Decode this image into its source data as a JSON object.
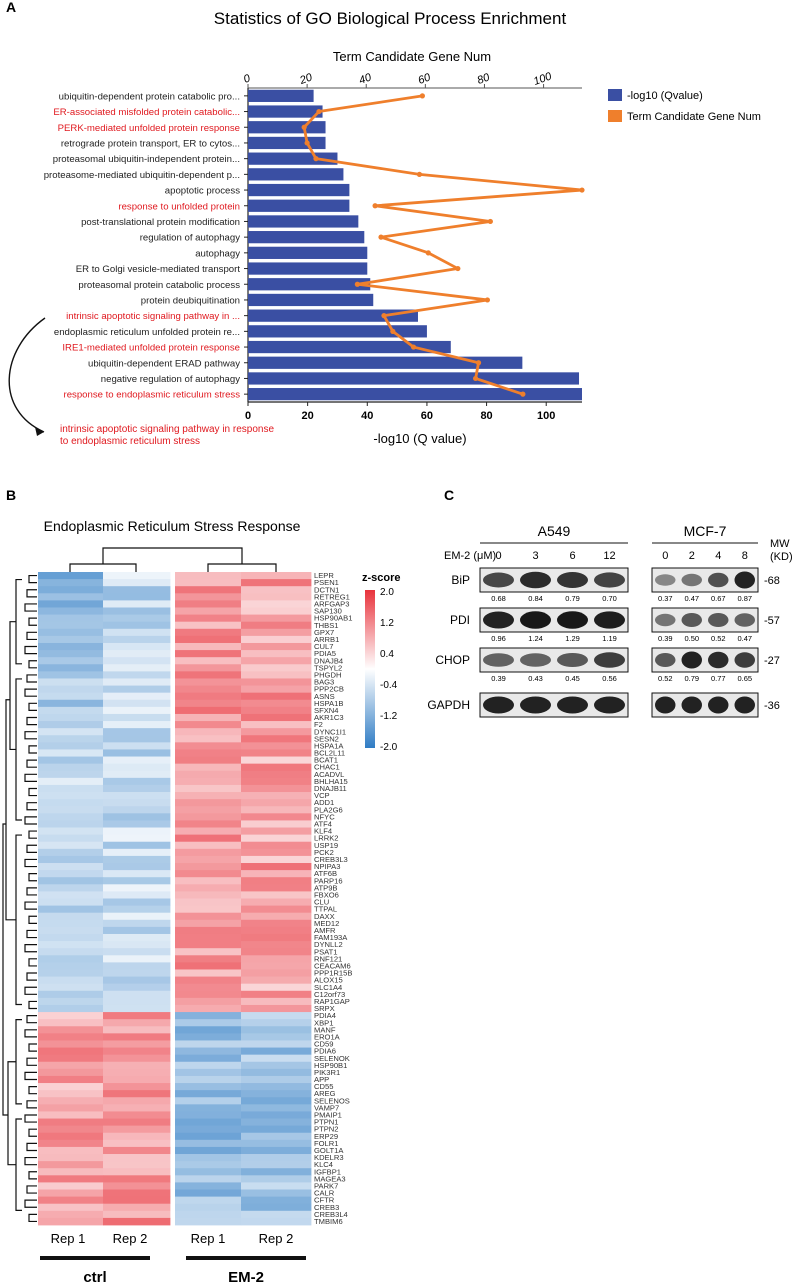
{
  "panel_labels": {
    "a": "A",
    "b": "B",
    "c": "C"
  },
  "colors": {
    "bar": "#3a4fa3",
    "line": "#ef7f2c",
    "highlight": "#e0191f",
    "text": "#222222",
    "heat_high": "#e8333c",
    "heat_mid": "#ffffff",
    "heat_low": "#2f7cc4"
  },
  "chart_data": [
    {
      "type": "bar",
      "title": "Statistics of GO Biological Process Enrichment",
      "top_axis_title": "Term Candidate Gene Num",
      "xlabel": "-log10 (Q value)",
      "xlim": [
        0,
        112
      ],
      "top_xlim": [
        0,
        113
      ],
      "ticks": [
        0,
        20,
        40,
        60,
        80,
        100
      ],
      "legend": {
        "bar": "-log10 (Qvalue)",
        "line": "Term Candidate Gene Num"
      },
      "categories": [
        "ubiquitin-dependent protein catabolic pro...",
        "ER-associated misfolded protein catabolic...",
        "PERK-mediated unfolded protein response",
        "retrograde protein transport, ER to cytos...",
        "proteasomal ubiquitin-independent protein...",
        "proteasome-mediated ubiquitin-dependent p...",
        "apoptotic process",
        "response to unfolded protein",
        "post-translational protein modification",
        "regulation of autophagy",
        "autophagy",
        "ER to Golgi vesicle-mediated transport",
        "proteasomal protein catabolic process",
        "protein deubiquitination",
        "intrinsic apoptotic signaling pathway in ...",
        "endoplasmic reticulum unfolded protein re...",
        "IRE1-mediated unfolded protein response",
        "ubiquitin-dependent ERAD pathway",
        "negative regulation of autophagy",
        "response to endoplasmic reticulum stress"
      ],
      "highlight": [
        false,
        true,
        true,
        false,
        false,
        false,
        false,
        true,
        false,
        false,
        false,
        false,
        false,
        false,
        true,
        false,
        true,
        false,
        false,
        true
      ],
      "values": [
        22,
        25,
        26,
        26,
        30,
        32,
        34,
        34,
        37,
        39,
        40,
        40,
        41,
        42,
        57,
        60,
        68,
        92,
        111,
        112
      ],
      "gene_num": [
        59,
        24,
        19,
        20,
        23,
        58,
        113,
        43,
        82,
        45,
        61,
        71,
        37,
        81,
        46,
        49,
        56,
        78,
        77,
        93
      ],
      "annotation": "intrinsic apoptotic signaling pathway in response to endoplasmic reticulum stress"
    },
    {
      "type": "heatmap",
      "title": "Endoplasmic Reticulum Stress Response",
      "legend_title": "z-score",
      "scale_ticks": [
        "2.0",
        "1.2",
        "0.4",
        "-0.4",
        "-1.2",
        "-2.0"
      ],
      "columns": [
        "Rep 1",
        "Rep 2",
        "Rep 1",
        "Rep 2"
      ],
      "groups": [
        "ctrl",
        "EM-2"
      ],
      "genes": [
        "LEPR",
        "PSEN1",
        "DCTN1",
        "RETREG1",
        "ARFGAP3",
        "SAP130",
        "HSP90AB1",
        "THBS1",
        "GPX7",
        "ARRB1",
        "CUL7",
        "PDIA5",
        "DNAJB4",
        "TSPYL2",
        "PHGDH",
        "BAG3",
        "PPP2CB",
        "ASNS",
        "HSPA1B",
        "SFXN4",
        "AKR1C3",
        "F2",
        "DYNC1I1",
        "SESN2",
        "HSPA1A",
        "BCL2L11",
        "BCAT1",
        "CHAC1",
        "ACADVL",
        "BHLHA15",
        "DNAJB11",
        "VCP",
        "ADD1",
        "PLA2G6",
        "NFYC",
        "ATF4",
        "KLF4",
        "LRRK2",
        "USP19",
        "PCK2",
        "CREB3L3",
        "NPIPA3",
        "ATF6B",
        "PARP16",
        "ATP9B",
        "FBXO6",
        "CLU",
        "TTPAL",
        "DAXX",
        "MED12",
        "AMFR",
        "FAM193A",
        "DYNLL2",
        "PSAT1",
        "RNF121",
        "CEACAM6",
        "PPP1R15B",
        "ALOX15",
        "SLC1A4",
        "C12orf73",
        "RAP1GAP",
        "SRPX",
        "PDIA4",
        "XBP1",
        "MANF",
        "ERO1A",
        "CD59",
        "PDIA6",
        "SELENOK",
        "HSP90B1",
        "PIK3R1",
        "APP",
        "CD55",
        "AREG",
        "SELENOS",
        "VAMP7",
        "PMAIP1",
        "PTPN1",
        "PTPN2",
        "ERP29",
        "FOLR1",
        "GOLT1A",
        "KDELR3",
        "KLC4",
        "IGFBP1",
        "MAGEA3",
        "PARK7",
        "CALR",
        "CFTR",
        "CREB3",
        "CREB3L4",
        "TMBIM6"
      ]
    }
  ],
  "western": {
    "treatment_label": "EM-2 (μM)",
    "mw_label": "MW",
    "kd_label": "(KD)",
    "cell_lines": [
      {
        "name": "A549",
        "doses": [
          "0",
          "3",
          "6",
          "12"
        ]
      },
      {
        "name": "MCF-7",
        "doses": [
          "0",
          "2",
          "4",
          "8"
        ]
      }
    ],
    "proteins": [
      {
        "name": "BiP",
        "mw": "-68",
        "a549": [
          "0.68",
          "0.84",
          "0.79",
          "0.70"
        ],
        "mcf7": [
          "0.37",
          "0.47",
          "0.67",
          "0.87"
        ]
      },
      {
        "name": "PDI",
        "mw": "-57",
        "a549": [
          "0.96",
          "1.24",
          "1.29",
          "1.19"
        ],
        "mcf7": [
          "0.39",
          "0.50",
          "0.52",
          "0.47"
        ]
      },
      {
        "name": "CHOP",
        "mw": "-27",
        "a549": [
          "0.39",
          "0.43",
          "0.45",
          "0.56"
        ],
        "mcf7": [
          "0.52",
          "0.79",
          "0.77",
          "0.65"
        ]
      },
      {
        "name": "GAPDH",
        "mw": "-36",
        "a549": [],
        "mcf7": []
      }
    ]
  }
}
